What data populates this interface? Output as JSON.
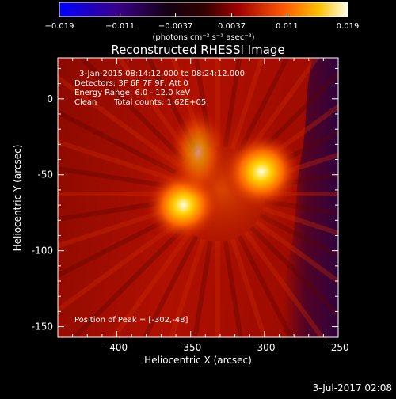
{
  "chart_data": {
    "type": "heatmap",
    "title": "Reconstructed RHESSI Image",
    "xlabel": "Heliocentric X (arcsec)",
    "ylabel": "Heliocentric Y (arcsec)",
    "xlim": [
      -440,
      -250
    ],
    "ylim": [
      -157,
      27
    ],
    "xticks": [
      -400,
      -350,
      -300,
      -250
    ],
    "yticks": [
      0,
      -50,
      -100,
      -150
    ],
    "xtick_labels": [
      "-400",
      "-350",
      "-300",
      "-250"
    ],
    "ytick_labels": [
      "0",
      "-50",
      "-100",
      "-150"
    ],
    "colorbar": {
      "range": [
        -0.019,
        0.019
      ],
      "ticks": [
        -0.019,
        -0.011,
        -0.0037,
        0.0037,
        0.011,
        0.019
      ],
      "tick_labels": [
        "−0.019",
        "−0.011",
        "−0.0037",
        "0.0037",
        "0.011",
        "0.019"
      ],
      "unit_label": "(photons cm⁻² s⁻¹ asec⁻²)"
    },
    "sources": [
      {
        "x": -302,
        "y": -48,
        "peak": 0.019
      },
      {
        "x": -355,
        "y": -70,
        "peak": 0.017
      },
      {
        "x": -345,
        "y": -35,
        "peak": 0.008
      }
    ],
    "grid": false
  },
  "annotations": {
    "time_range": "3-Jan-2015 08:14:12.000 to 08:24:12.000",
    "detectors": "Detectors: 3F 6F 7F 9F, Att 0",
    "energy_range": "Energy Range: 6.0 - 12.0 keV",
    "method": "Clean",
    "total_counts": "Total counts: 1.62E+05",
    "peak_position": "Position of Peak = [-302,-48]"
  },
  "footer": {
    "timestamp": "3-Jul-2017 02:08"
  },
  "colors": {
    "colormap": [
      "#0000ff",
      "#3a008a",
      "#000000",
      "#7a0000",
      "#d02000",
      "#ff7000",
      "#ffd000",
      "#ffffe8"
    ],
    "background": "#000000"
  }
}
